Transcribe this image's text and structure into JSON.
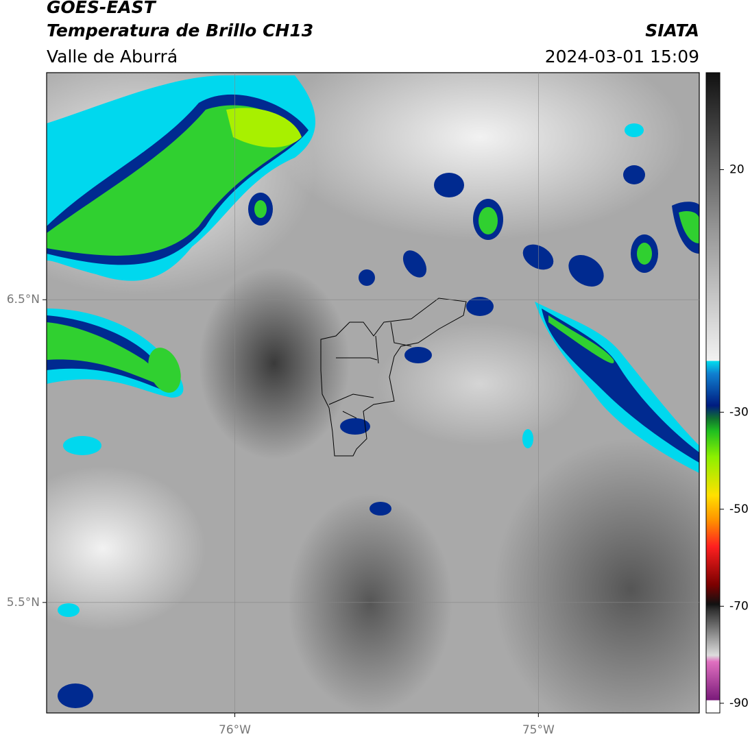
{
  "header": {
    "title": "GOES-EAST",
    "subtitle": "Temperatura de Brillo CH13",
    "region": "Valle de Aburrá",
    "source": "SIATA",
    "datetime": "2024-03-01 15:09"
  },
  "map": {
    "xlim": [
      -76.62,
      -74.47
    ],
    "ylim": [
      5.135,
      7.25
    ],
    "xticks": [
      {
        "value": -76,
        "label": "76°W"
      },
      {
        "value": -75,
        "label": "75°W"
      }
    ],
    "yticks": [
      {
        "value": 6.5,
        "label": "6.5°N"
      },
      {
        "value": 5.5,
        "label": "5.5°N"
      }
    ],
    "grid": true
  },
  "colorbar": {
    "lim": [
      -92,
      40
    ],
    "ticks": [
      20,
      -30,
      -50,
      -70,
      -90
    ]
  }
}
